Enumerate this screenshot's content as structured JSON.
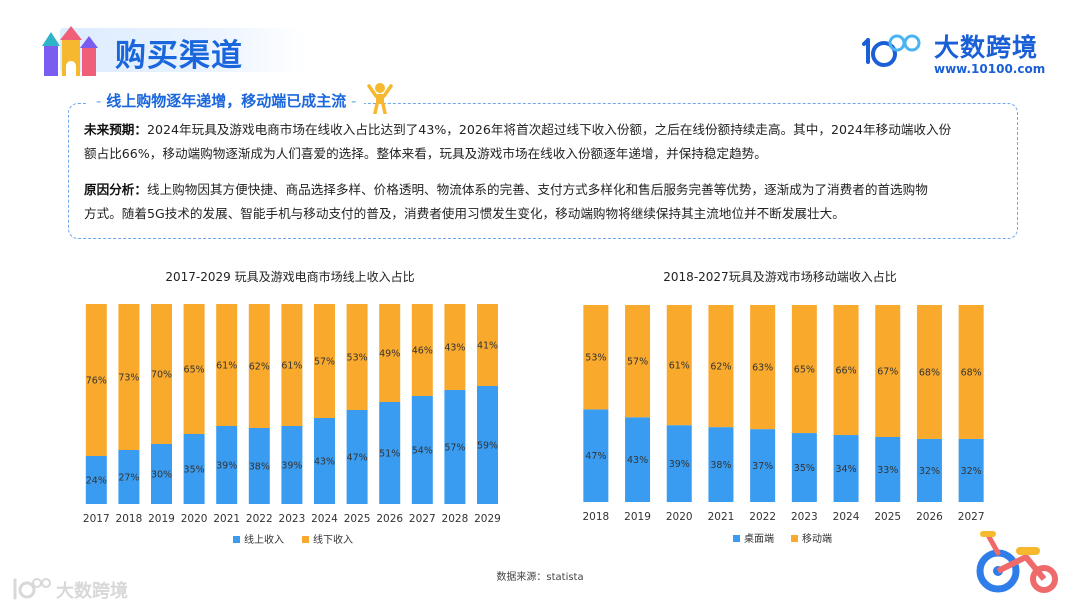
{
  "header": {
    "title": "购买渠道"
  },
  "brand": {
    "name": "大数跨境",
    "url": "www.10100.com"
  },
  "summary": {
    "heading": "线上购物逐年递增，移动端已成主流",
    "p1_label": "未来预期：",
    "p1_line1": "2024年玩具及游戏电商市场在线收入占比达到了43%，2026年将首次超过线下收入份额，之后在线份额持续走高。其中，2024年移动端收入份",
    "p1_line2": "额占比66%，移动端购物逐渐成为人们喜爱的选择。整体来看，玩具及游戏市场在线收入份额逐年递增，并保持稳定趋势。",
    "p2_label": "原因分析：",
    "p2_line1": "线上购物因其方便快捷、商品选择多样、价格透明、物流体系的完善、支付方式多样化和售后服务完善等优势，逐渐成为了消费者的首选购物",
    "p2_line2": "方式。随着5G技术的发展、智能手机与移动支付的普及，消费者使用习惯发生变化，移动端购物将继续保持其主流地位并不断发展壮大。"
  },
  "source": "数据来源：statista",
  "watermark": "大数跨境",
  "colors": {
    "blue": "#3a9cf0",
    "orange": "#f9aa2d",
    "accent": "#1a66dd"
  },
  "chart_data": [
    {
      "type": "bar",
      "stacked": true,
      "title": "2017-2029 玩具及游戏电商市场线上收入占比",
      "categories": [
        "2017",
        "2018",
        "2019",
        "2020",
        "2021",
        "2022",
        "2023",
        "2024",
        "2025",
        "2026",
        "2027",
        "2028",
        "2029"
      ],
      "series": [
        {
          "name": "线上收入",
          "color": "#3a9cf0",
          "values": [
            24,
            27,
            30,
            35,
            39,
            38,
            39,
            43,
            47,
            51,
            54,
            57,
            59
          ]
        },
        {
          "name": "线下收入",
          "color": "#f9aa2d",
          "values": [
            76,
            73,
            70,
            65,
            61,
            62,
            61,
            57,
            53,
            49,
            46,
            43,
            41
          ]
        }
      ],
      "ylim": [
        0,
        100
      ],
      "value_suffix": "%",
      "legend": "bottom"
    },
    {
      "type": "bar",
      "stacked": true,
      "title": "2018-2027玩具及游戏市场移动端收入占比",
      "categories": [
        "2018",
        "2019",
        "2020",
        "2021",
        "2022",
        "2023",
        "2024",
        "2025",
        "2026",
        "2027"
      ],
      "series": [
        {
          "name": "桌面端",
          "color": "#3a9cf0",
          "values": [
            47,
            43,
            39,
            38,
            37,
            35,
            34,
            33,
            32,
            32
          ]
        },
        {
          "name": "移动端",
          "color": "#f9aa2d",
          "values": [
            53,
            57,
            61,
            62,
            63,
            65,
            66,
            67,
            68,
            68
          ]
        }
      ],
      "ylim": [
        0,
        100
      ],
      "value_suffix": "%",
      "legend": "bottom"
    }
  ]
}
